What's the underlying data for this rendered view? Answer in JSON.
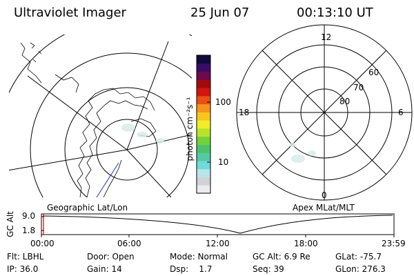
{
  "header": {
    "title": "Ultraviolet Imager",
    "date": "25 Jun 07",
    "time": "00:13:10 UT"
  },
  "colorbar": {
    "unit_label": "photon cm⁻²s⁻¹",
    "tick_100": "100",
    "tick_10": "10",
    "colors": [
      "#ececec",
      "#cfd2d6",
      "#b9e4e8",
      "#6fdad8",
      "#55c9a4",
      "#4cc36a",
      "#73d23a",
      "#b7e22b",
      "#f0ec2a",
      "#f9c51e",
      "#f5951b",
      "#ea4f14",
      "#d2150d",
      "#a10b0f",
      "#6d0b4a",
      "#3a0c6a",
      "#0f0c3c"
    ]
  },
  "left_panel": {
    "label": "Geographic Lat/Lon"
  },
  "right_panel": {
    "label": "Apex MLat/MLT",
    "mlt_labels": {
      "top": "12",
      "left": "18",
      "right": "6",
      "bottom": "0"
    },
    "lat_labels": [
      "60",
      "70",
      "80"
    ]
  },
  "timeline": {
    "y_label": "GC Alt",
    "y_ticks": [
      "9.0",
      "1.8"
    ],
    "x_ticks": [
      "00:00",
      "06:00",
      "12:00",
      "18:00",
      "23:59"
    ],
    "marker_color": "#cc0000"
  },
  "info": {
    "col1": [
      "Flt: LBHL",
      "IP: 36.0"
    ],
    "col2": [
      "Door: Open",
      "Gain: 14"
    ],
    "col3": [
      "Mode: Normal",
      "Dsp:    1.7"
    ],
    "col4": [
      "GC Alt: 6.9 Re",
      "Seq: 39"
    ],
    "col5": [
      "GLat: -75.7",
      "GLon: 276.3"
    ]
  }
}
